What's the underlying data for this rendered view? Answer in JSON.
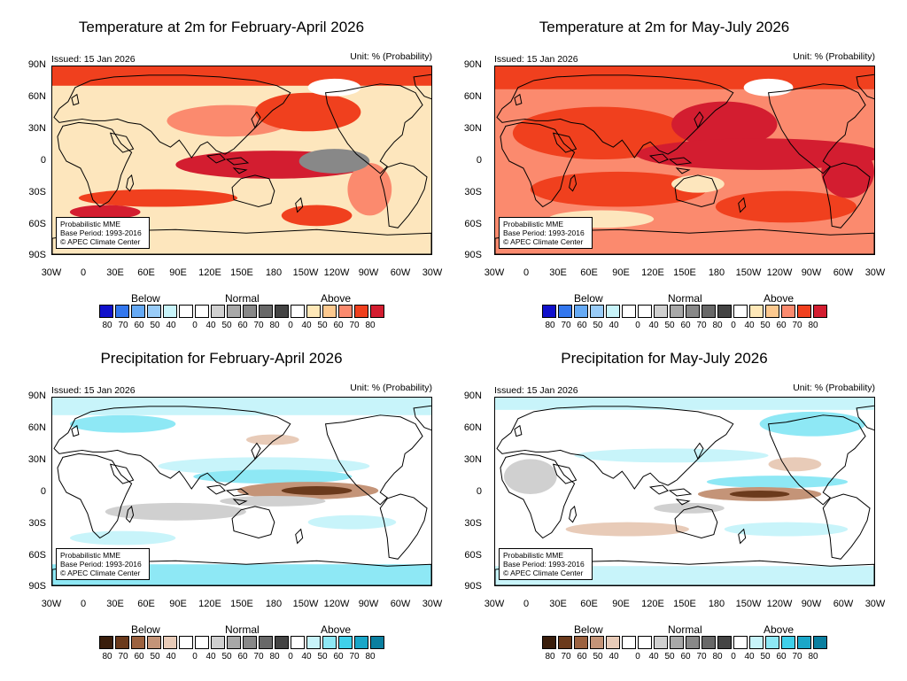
{
  "panels": [
    {
      "title": "Temperature at 2m for February-April 2026",
      "issued": "Issued: 15 Jan 2026",
      "unit": "Unit: % (Probability)",
      "theme": "temp1",
      "legend_scheme": "temperature",
      "info": [
        "Probabilistic MME",
        "Base Period: 1993-2016",
        "© APEC Climate Center"
      ]
    },
    {
      "title": "Temperature at 2m for May-July 2026",
      "issued": "Issued: 15 Jan 2026",
      "unit": "Unit: % (Probability)",
      "theme": "temp2",
      "legend_scheme": "temperature",
      "info": [
        "Probabilistic MME",
        "Base Period: 1993-2016",
        "© APEC Climate Center"
      ]
    },
    {
      "title": "Precipitation for February-April 2026",
      "issued": "Issued: 15 Jan 2026",
      "unit": "Unit: % (Probability)",
      "theme": "prec1",
      "legend_scheme": "precipitation",
      "info": [
        "Probabilistic MME",
        "Base Period: 1993-2016",
        "© APEC Climate Center"
      ]
    },
    {
      "title": "Precipitation for May-July 2026",
      "issued": "Issued: 15 Jan 2026",
      "unit": "Unit: % (Probability)",
      "theme": "prec2",
      "legend_scheme": "precipitation",
      "info": [
        "Probabilistic MME",
        "Base Period: 1993-2016",
        "© APEC Climate Center"
      ]
    }
  ],
  "axes": {
    "lat_ticks": [
      "90N",
      "60N",
      "30N",
      "0",
      "30S",
      "60S",
      "90S"
    ],
    "lon_ticks": [
      "30W",
      "0",
      "30E",
      "60E",
      "90E",
      "120E",
      "150E",
      "180",
      "150W",
      "120W",
      "90W",
      "60W",
      "30W"
    ]
  },
  "legend": {
    "category_labels": [
      "Below",
      "Normal",
      "Above"
    ],
    "tick_labels": [
      "80",
      "70",
      "60",
      "50",
      "40",
      "0",
      "40",
      "50",
      "60",
      "70",
      "80",
      "0",
      "40",
      "50",
      "60",
      "70",
      "80"
    ],
    "temperature_colors": [
      "#1111cc",
      "#3377ee",
      "#66aaf5",
      "#99ccf8",
      "#c8f4fa",
      "#ffffff",
      "#ffffff",
      "#d0d0d0",
      "#a8a8a8",
      "#888888",
      "#686868",
      "#444444",
      "#ffffff",
      "#ffe8b8",
      "#fdc98f",
      "#fb8a6e",
      "#f0401e",
      "#d31d30"
    ],
    "precipitation_colors": [
      "#3a1e0c",
      "#6b3a1c",
      "#9c6240",
      "#c49478",
      "#e8cbb8",
      "#ffffff",
      "#ffffff",
      "#d0d0d0",
      "#a8a8a8",
      "#888888",
      "#686868",
      "#444444",
      "#ffffff",
      "#c8f4fa",
      "#8ee8f5",
      "#3fd0ea",
      "#1aa6c8",
      "#0a7fa0"
    ]
  }
}
